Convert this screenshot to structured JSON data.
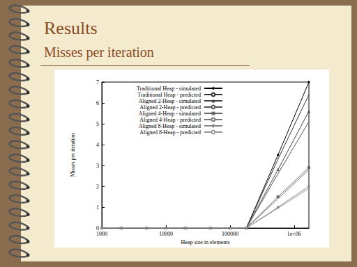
{
  "chart_data": {
    "type": "line",
    "title": "Results",
    "subtitle": "Misses per iteration",
    "x_label": "Heap size in elements",
    "y_label": "Misses per iteration",
    "log": "x",
    "grid": false,
    "legend": "top-left",
    "x": [
      1000,
      2000,
      5000,
      10000,
      20000,
      50000,
      100000,
      180000,
      560000,
      1700000
    ],
    "xlim": [
      1000,
      1700000
    ],
    "xticks": [
      1000,
      10000,
      100000,
      {
        "value": 1000000,
        "label": "1e+06"
      }
    ],
    "ylim": [
      0,
      7
    ],
    "yticks": [
      0,
      1,
      2,
      3,
      4,
      5,
      6,
      7
    ],
    "series": [
      {
        "name": "Traditional Heap - simulated",
        "color": "#000000",
        "marker": "diamond",
        "line_style": "solid",
        "values": [
          0,
          0,
          0,
          0,
          0,
          0,
          0,
          0,
          3.5,
          7.0
        ]
      },
      {
        "name": "Traditional Heap - predicted",
        "color": "#333333",
        "marker": "none",
        "line_style": "solid",
        "values": [
          0,
          0,
          0,
          0,
          0,
          0,
          0,
          0,
          3.3,
          6.4
        ]
      },
      {
        "name": "Aligned 2-Heap - simulated",
        "color": "#444444",
        "marker": "triangle",
        "line_style": "solid",
        "values": [
          0,
          0,
          0,
          0,
          0,
          0,
          0,
          0,
          2.8,
          5.6
        ]
      },
      {
        "name": "Aligned 2-Heap - predicted",
        "color": "#555555",
        "marker": "none",
        "line_style": "solid",
        "values": [
          0,
          0,
          0,
          0,
          0,
          0,
          0,
          0,
          2.6,
          5.1
        ]
      },
      {
        "name": "Aligned 4-Heap - simulated",
        "color": "#666666",
        "marker": "rect",
        "line_style": "solid",
        "values": [
          0,
          0,
          0,
          0,
          0,
          0,
          0,
          0,
          1.5,
          2.9
        ]
      },
      {
        "name": "Aligned 4-Heap - predicted",
        "color": "#777777",
        "marker": "none",
        "line_style": "solid",
        "values": [
          0,
          0,
          0,
          0,
          0,
          0,
          0,
          0,
          1.4,
          2.8
        ]
      },
      {
        "name": "Aligned 8-Heap - simulated",
        "color": "#888888",
        "marker": "circle",
        "line_style": "solid",
        "values": [
          0,
          0,
          0,
          0,
          0,
          0,
          0,
          0,
          1.0,
          2.0
        ]
      },
      {
        "name": "Aligned 8-Heap - predicted",
        "color": "#999999",
        "marker": "none",
        "line_style": "solid",
        "values": [
          0,
          0,
          0,
          0,
          0,
          0,
          0,
          0,
          0.95,
          1.9
        ]
      }
    ]
  }
}
